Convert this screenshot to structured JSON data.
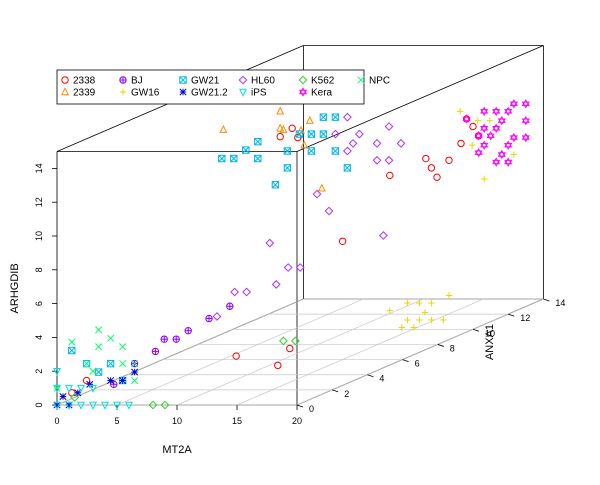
{
  "chart_data": {
    "type": "scatter",
    "projection": "3d",
    "title": "",
    "xlabel": "MT2A",
    "ylabel": "ARHGDIB",
    "zlabel": "ANXA1",
    "xlim": [
      0,
      20
    ],
    "ylim": [
      0,
      15
    ],
    "zlim": [
      0,
      14
    ],
    "x_ticks": [
      0,
      5,
      10,
      15,
      20
    ],
    "y_ticks": [
      0,
      2,
      4,
      6,
      8,
      10,
      12,
      14
    ],
    "z_ticks": [
      0,
      2,
      4,
      6,
      8,
      10,
      12,
      14
    ],
    "grid": "floor",
    "legend_position": "top-left",
    "series": [
      {
        "name": "2338",
        "color": "#ff0000",
        "marker": "circle",
        "points": [
          [
            1,
            10,
            13
          ],
          [
            1,
            10.5,
            12
          ],
          [
            2,
            11,
            12
          ],
          [
            1,
            1,
            1
          ],
          [
            0.5,
            0.5,
            0.5
          ],
          [
            15,
            7,
            6
          ],
          [
            16,
            10,
            8
          ],
          [
            17,
            9,
            10
          ],
          [
            18,
            10,
            9
          ],
          [
            19,
            11,
            10
          ],
          [
            18,
            12,
            11
          ],
          [
            19,
            11,
            11
          ],
          [
            12,
            2,
            2
          ],
          [
            14,
            1,
            3
          ],
          [
            15,
            2,
            3
          ],
          [
            19,
            11,
            8
          ],
          [
            18,
            10,
            10
          ],
          [
            20,
            12,
            10
          ]
        ]
      },
      {
        "name": "2339",
        "color": "#ff8c00",
        "marker": "triangle",
        "points": [
          [
            1,
            12,
            12
          ],
          [
            2,
            11,
            13
          ],
          [
            3,
            10,
            12
          ],
          [
            3,
            7,
            13
          ],
          [
            8,
            14.5,
            4
          ],
          [
            13,
            14.5,
            4
          ],
          [
            13,
            14,
            5
          ],
          [
            1,
            11,
            12
          ]
        ]
      },
      {
        "name": "BJ",
        "color": "#8b00ff",
        "marker": "plus-circle",
        "points": [
          [
            5,
            2,
            1
          ],
          [
            6,
            2.5,
            1.5
          ],
          [
            7,
            3,
            2
          ],
          [
            8,
            3.5,
            2
          ],
          [
            9,
            4,
            2.5
          ],
          [
            10,
            4.5,
            3
          ],
          [
            4,
            1,
            0.5
          ],
          [
            6,
            3,
            2
          ]
        ]
      },
      {
        "name": "GW16",
        "color": "#dddd00",
        "marker": "plus",
        "points": [
          [
            16,
            11,
            13
          ],
          [
            17,
            11,
            13
          ],
          [
            16,
            12,
            12
          ],
          [
            17,
            10,
            12
          ],
          [
            18,
            8,
            12
          ],
          [
            19,
            9,
            13
          ],
          [
            16,
            2,
            8
          ],
          [
            17,
            1,
            9
          ],
          [
            18,
            2,
            10
          ],
          [
            16,
            1,
            10
          ],
          [
            17,
            2,
            9
          ],
          [
            18,
            1,
            9
          ],
          [
            16,
            2,
            9
          ],
          [
            17,
            1,
            8
          ],
          [
            19,
            1,
            9
          ],
          [
            16,
            1,
            9
          ],
          [
            18,
            2,
            9
          ],
          [
            18,
            1,
            8
          ]
        ]
      },
      {
        "name": "GW21",
        "color": "#00b4e6",
        "marker": "square-x",
        "points": [
          [
            2,
            11,
            8
          ],
          [
            3,
            11,
            8
          ],
          [
            4,
            11.5,
            8
          ],
          [
            5,
            12,
            8
          ],
          [
            5,
            11,
            8
          ],
          [
            6,
            11,
            9
          ],
          [
            7,
            12,
            9
          ],
          [
            8,
            12,
            9
          ],
          [
            9,
            13,
            9
          ],
          [
            10,
            13,
            9
          ],
          [
            11,
            14,
            9
          ],
          [
            12,
            14,
            9
          ],
          [
            6,
            10,
            9
          ],
          [
            5,
            9,
            9
          ],
          [
            3,
            2,
            1
          ],
          [
            2,
            1.5,
            1
          ],
          [
            1,
            2,
            1
          ],
          [
            0.5,
            3,
            0.5
          ],
          [
            4,
            1,
            1
          ],
          [
            11,
            10,
            9
          ],
          [
            10,
            11,
            9
          ],
          [
            9,
            12,
            9
          ],
          [
            8,
            11,
            9
          ]
        ]
      },
      {
        "name": "GW21.2",
        "color": "#0000cd",
        "marker": "star",
        "points": [
          [
            1,
            0.5,
            0.5
          ],
          [
            2,
            1,
            0.5
          ],
          [
            3,
            1,
            1
          ],
          [
            4,
            1,
            1
          ],
          [
            5,
            1.5,
            1
          ],
          [
            0,
            0,
            0
          ],
          [
            1,
            0,
            0
          ],
          [
            0.5,
            0.5,
            0
          ]
        ]
      },
      {
        "name": "HL60",
        "color": "#aa33ff",
        "marker": "diamond",
        "points": [
          [
            10,
            12,
            9
          ],
          [
            11,
            13,
            9
          ],
          [
            12,
            12,
            9
          ],
          [
            13,
            12,
            10
          ],
          [
            12,
            11,
            10
          ],
          [
            14,
            11,
            10
          ],
          [
            13,
            10,
            10
          ],
          [
            12,
            10,
            10
          ],
          [
            11,
            11,
            9
          ],
          [
            10,
            11,
            10
          ],
          [
            8,
            7,
            10
          ],
          [
            7,
            8,
            10
          ],
          [
            6,
            6,
            8
          ],
          [
            7,
            4,
            6
          ],
          [
            8,
            4,
            7
          ],
          [
            9,
            5,
            7
          ],
          [
            10,
            5,
            7
          ],
          [
            6,
            4,
            6
          ],
          [
            6,
            3,
            5
          ],
          [
            14,
            6,
            9
          ]
        ]
      },
      {
        "name": "iPS",
        "color": "#00e0e0",
        "marker": "triangle-down",
        "points": [
          [
            0,
            0,
            0
          ],
          [
            1,
            0,
            0
          ],
          [
            2,
            0,
            0
          ],
          [
            3,
            0,
            0
          ],
          [
            4,
            0,
            0
          ],
          [
            5,
            0,
            0
          ],
          [
            6,
            0,
            0
          ],
          [
            0,
            1,
            0
          ],
          [
            0,
            2,
            0
          ],
          [
            1,
            1,
            0
          ],
          [
            2,
            1,
            0
          ],
          [
            3,
            1,
            0
          ]
        ]
      },
      {
        "name": "K562",
        "color": "#33cc33",
        "marker": "diamond",
        "points": [
          [
            8,
            0,
            0
          ],
          [
            9,
            0,
            0
          ],
          [
            13,
            2,
            4
          ],
          [
            14,
            2,
            4
          ],
          [
            0,
            0,
            1
          ]
        ]
      },
      {
        "name": "Kera",
        "color": "#ff00ff",
        "marker": "hourglass",
        "points": [
          [
            19,
            10,
            13
          ],
          [
            20,
            11,
            13
          ],
          [
            19,
            11,
            12
          ],
          [
            20,
            12,
            12
          ],
          [
            18,
            12,
            12
          ],
          [
            19,
            12,
            13
          ],
          [
            20,
            10,
            12
          ],
          [
            18,
            11,
            13
          ],
          [
            19,
            9,
            12
          ],
          [
            20,
            11,
            11
          ],
          [
            18,
            10,
            12
          ],
          [
            19,
            11,
            11
          ],
          [
            20,
            12,
            13
          ],
          [
            18,
            12,
            11
          ],
          [
            19,
            10,
            11
          ],
          [
            20,
            9,
            12
          ],
          [
            18,
            11,
            12
          ],
          [
            19,
            12,
            12
          ],
          [
            20,
            10,
            13
          ],
          [
            18,
            9,
            13
          ]
        ]
      },
      {
        "name": "NPC",
        "color": "#00ff66",
        "marker": "x",
        "points": [
          [
            2,
            3,
            1
          ],
          [
            3,
            3.5,
            1
          ],
          [
            1,
            2,
            1
          ],
          [
            4,
            2,
            1
          ],
          [
            5,
            1,
            1
          ],
          [
            0,
            1,
            0
          ],
          [
            3,
            2,
            0
          ],
          [
            4,
            3,
            1
          ],
          [
            2,
            4,
            1
          ],
          [
            5,
            2,
            1
          ],
          [
            0.5,
            3.5,
            0.5
          ]
        ]
      }
    ]
  }
}
